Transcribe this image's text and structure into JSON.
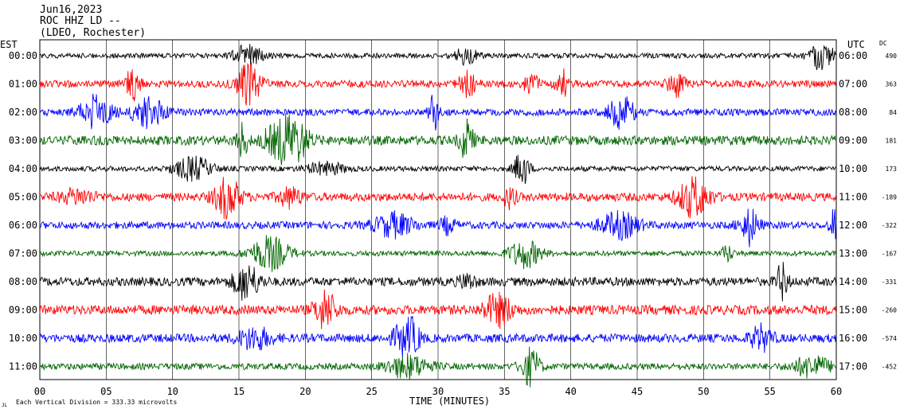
{
  "header": {
    "date": "Jun16,2023",
    "station": "ROC HHZ LD --",
    "network": "(LDEO, Rochester)"
  },
  "axes": {
    "left_zone": "EST",
    "right_zone": "UTC",
    "dc_label": "DC",
    "xlabel": "TIME (MINUTES)",
    "scale_note": "Each Vertical Division =  333.33 microvolts",
    "corner_mark": "JL"
  },
  "chart_data": {
    "type": "line",
    "title": "",
    "xlabel": "TIME (MINUTES)",
    "x_ticks": [
      "00",
      "05",
      "10",
      "15",
      "20",
      "25",
      "30",
      "35",
      "40",
      "45",
      "50",
      "55",
      "60"
    ],
    "xlim": [
      0,
      60
    ],
    "rows": [
      {
        "est": "00:00",
        "utc": "06:00",
        "dc": "490",
        "color": "#000000"
      },
      {
        "est": "01:00",
        "utc": "07:00",
        "dc": "363",
        "color": "#ff0000"
      },
      {
        "est": "02:00",
        "utc": "08:00",
        "dc": "84",
        "color": "#0000ff"
      },
      {
        "est": "03:00",
        "utc": "09:00",
        "dc": "181",
        "color": "#006400"
      },
      {
        "est": "04:00",
        "utc": "10:00",
        "dc": "173",
        "color": "#000000"
      },
      {
        "est": "05:00",
        "utc": "11:00",
        "dc": "-189",
        "color": "#ff0000"
      },
      {
        "est": "06:00",
        "utc": "12:00",
        "dc": "-322",
        "color": "#0000ff"
      },
      {
        "est": "07:00",
        "utc": "13:00",
        "dc": "-167",
        "color": "#006400"
      },
      {
        "est": "08:00",
        "utc": "14:00",
        "dc": "-331",
        "color": "#000000"
      },
      {
        "est": "09:00",
        "utc": "15:00",
        "dc": "-260",
        "color": "#ff0000"
      },
      {
        "est": "10:00",
        "utc": "16:00",
        "dc": "-574",
        "color": "#0000ff"
      },
      {
        "est": "11:00",
        "utc": "17:00",
        "dc": "-452",
        "color": "#006400"
      }
    ]
  }
}
